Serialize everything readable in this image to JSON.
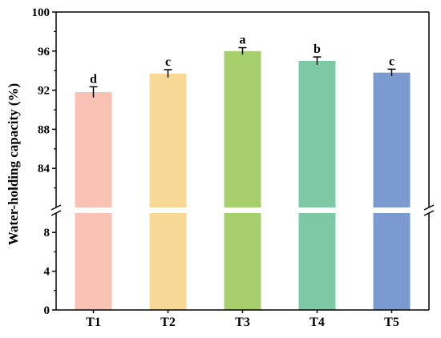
{
  "chart_data": {
    "type": "bar",
    "title": "",
    "xlabel": "",
    "ylabel": "Water-holding capacity (%)",
    "categories": [
      "T1",
      "T2",
      "T3",
      "T4",
      "T5"
    ],
    "values": [
      91.8,
      93.7,
      96.0,
      95.0,
      93.8
    ],
    "errors": [
      0.55,
      0.4,
      0.35,
      0.4,
      0.35
    ],
    "significance": [
      "d",
      "c",
      "a",
      "b",
      "c"
    ],
    "colors": [
      "#f9c2b4",
      "#f7d995",
      "#a6d06d",
      "#7dc9a5",
      "#7b9ad0"
    ],
    "axis_break": {
      "lower_ylim": [
        0,
        10
      ],
      "upper_ylim": [
        80,
        100
      ]
    },
    "lower_yticks": [
      "0",
      "4",
      "8"
    ],
    "upper_yticks": [
      "84",
      "88",
      "92",
      "96",
      "100"
    ],
    "grid": false,
    "legend": "none"
  }
}
